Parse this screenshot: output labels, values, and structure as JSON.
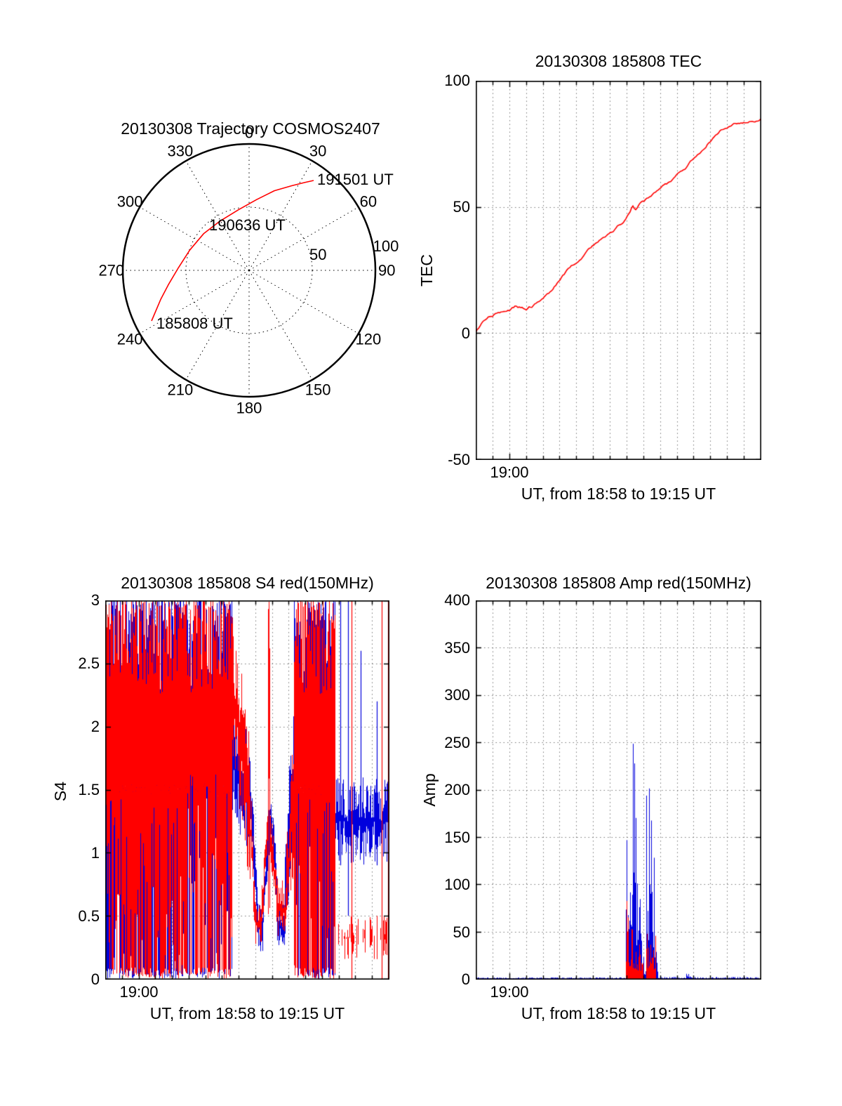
{
  "figure": {
    "background": "#ffffff",
    "axis_color": "#000000"
  },
  "colors": {
    "red": "#ff0000",
    "blue": "#0000dd",
    "grid": "#777777"
  },
  "chart_data": [
    {
      "id": "trajectory",
      "type": "polar",
      "title": "20130308 Trajectory COSMOS2407",
      "azimuth_ticks": [
        {
          "deg": 0,
          "label": "0"
        },
        {
          "deg": 30,
          "label": "30"
        },
        {
          "deg": 60,
          "label": "60"
        },
        {
          "deg": 90,
          "label": "90"
        },
        {
          "deg": 120,
          "label": "120"
        },
        {
          "deg": 150,
          "label": "150"
        },
        {
          "deg": 180,
          "label": "180"
        },
        {
          "deg": 210,
          "label": "210"
        },
        {
          "deg": 240,
          "label": "240"
        },
        {
          "deg": 270,
          "label": "270"
        },
        {
          "deg": 300,
          "label": "300"
        },
        {
          "deg": 330,
          "label": "330"
        }
      ],
      "ring_ticks": [
        {
          "r": 0.56,
          "deg": 77,
          "label": "50"
        },
        {
          "r": 1.1,
          "deg": 80,
          "label": "100"
        }
      ],
      "dotted_rings_r": [
        0.5
      ],
      "trajectory_color": "#ff0000",
      "trajectory_points_xy": [
        [
          -0.772,
          0.4
        ],
        [
          -0.7,
          0.23
        ],
        [
          -0.64,
          0.115
        ],
        [
          -0.56,
          -0.02
        ],
        [
          -0.47,
          -0.16
        ],
        [
          -0.36,
          -0.29
        ],
        [
          -0.23,
          -0.39
        ],
        [
          -0.083,
          -0.48
        ],
        [
          0.06,
          -0.56
        ],
        [
          0.2,
          -0.63
        ],
        [
          0.34,
          -0.67
        ],
        [
          0.44,
          -0.695
        ],
        [
          0.511,
          -0.711
        ]
      ],
      "time_annotations": [
        "191501 UT",
        "190636 UT",
        "185808 UT"
      ]
    },
    {
      "id": "tec",
      "type": "line",
      "title": "20130308 185808 TEC",
      "ylabel": "TEC",
      "xlabel": "UT, from 18:58 to 19:15 UT",
      "xlim_minutes": [
        0,
        17
      ],
      "x_start": "18:58",
      "x_end": "19:15",
      "ylim": [
        -50,
        100
      ],
      "yticks": [
        "100",
        "50",
        "0",
        "-50"
      ],
      "xticks": [
        {
          "minute": 2,
          "label": "19:00"
        }
      ],
      "grid": "dotted",
      "series": [
        {
          "name": "TEC",
          "color": "#ff0000",
          "points_t_v": [
            [
              0,
              0
            ],
            [
              0.2,
              2
            ],
            [
              0.4,
              4
            ],
            [
              0.6,
              5
            ],
            [
              0.9,
              6.5
            ],
            [
              1.2,
              7.5
            ],
            [
              1.5,
              8.5
            ],
            [
              1.8,
              9
            ],
            [
              2.1,
              9.5
            ],
            [
              2.4,
              10.5
            ],
            [
              2.7,
              10
            ],
            [
              3.0,
              9.5
            ],
            [
              3.3,
              10.5
            ],
            [
              3.6,
              11.5
            ],
            [
              3.9,
              13
            ],
            [
              4.2,
              15
            ],
            [
              4.5,
              17
            ],
            [
              4.8,
              19
            ],
            [
              5.1,
              21.5
            ],
            [
              5.4,
              24
            ],
            [
              5.7,
              26
            ],
            [
              6.0,
              28
            ],
            [
              6.3,
              30
            ],
            [
              6.6,
              32
            ],
            [
              6.9,
              34
            ],
            [
              7.2,
              36
            ],
            [
              7.5,
              37.5
            ],
            [
              7.8,
              38.5
            ],
            [
              8.1,
              39.5
            ],
            [
              8.4,
              41.5
            ],
            [
              8.7,
              43.5
            ],
            [
              9.0,
              45.5
            ],
            [
              9.2,
              48
            ],
            [
              9.35,
              50.5
            ],
            [
              9.5,
              48.5
            ],
            [
              9.65,
              50
            ],
            [
              9.8,
              51
            ],
            [
              10.0,
              52
            ],
            [
              10.3,
              53.5
            ],
            [
              10.6,
              55
            ],
            [
              11.0,
              57
            ],
            [
              11.4,
              59
            ],
            [
              11.8,
              61
            ],
            [
              12.2,
              63.5
            ],
            [
              12.6,
              66
            ],
            [
              13.0,
              69
            ],
            [
              13.4,
              72
            ],
            [
              13.8,
              75
            ],
            [
              14.2,
              77.5
            ],
            [
              14.6,
              80
            ],
            [
              15.0,
              81.5
            ],
            [
              15.4,
              82.5
            ],
            [
              15.8,
              83
            ],
            [
              16.2,
              83.5
            ],
            [
              16.6,
              84
            ],
            [
              17,
              85
            ]
          ]
        }
      ]
    },
    {
      "id": "s4",
      "type": "noise-band",
      "title": "20130308 185808 S4 red(150MHz)",
      "ylabel": "S4",
      "xlabel": "UT, from 18:58 to 19:15 UT",
      "xlim_minutes": [
        0,
        17
      ],
      "x_start": "18:58",
      "x_end": "19:15",
      "ylim": [
        0,
        3
      ],
      "yticks": [
        "3",
        "2.5",
        "2",
        "1.5",
        "1",
        "0.5",
        "0"
      ],
      "xticks": [
        {
          "minute": 2,
          "label": "19:00"
        }
      ],
      "grid": "dotted",
      "series": [
        {
          "name": "S4 blue",
          "color": "#0000dd",
          "style": "band",
          "segments": [
            [
              0,
              7.6,
              0,
              3,
              0,
              3
            ],
            [
              7.6,
              8.6,
              1.2,
              2.4,
              1.0,
              2.0
            ],
            [
              8.6,
              9.1,
              1.0,
              2.0,
              0.3,
              0.8
            ],
            [
              9.1,
              9.45,
              0.2,
              0.6,
              0.2,
              0.6
            ],
            [
              9.45,
              9.9,
              0.3,
              0.8,
              1.1,
              1.6
            ],
            [
              9.9,
              10.3,
              1.1,
              1.6,
              0.5,
              0.9
            ],
            [
              10.3,
              10.75,
              0.2,
              0.6,
              0.2,
              0.6
            ],
            [
              10.75,
              11.3,
              0.3,
              1.0,
              1.0,
              2.5
            ],
            [
              11.3,
              13.8,
              0,
              3,
              0,
              3
            ],
            [
              13.8,
              17,
              0.9,
              1.6,
              0.9,
              1.6
            ]
          ],
          "spikes": [
            [
              14.1,
              0.9,
              3
            ],
            [
              14.55,
              0.5,
              3
            ],
            [
              15.3,
              1.0,
              2.6
            ],
            [
              16.3,
              0.9,
              2.2
            ]
          ]
        },
        {
          "name": "S4 red (150MHz)",
          "color": "#ff0000",
          "style": "band",
          "segments": [
            [
              0,
              7.6,
              0,
              3,
              0,
              3
            ],
            [
              7.6,
              8.6,
              1.6,
              3,
              0.8,
              2.0
            ],
            [
              8.6,
              9.0,
              0.8,
              2.0,
              0.3,
              0.6
            ],
            [
              9.0,
              9.35,
              0.25,
              0.6,
              0.25,
              0.6
            ],
            [
              9.35,
              9.75,
              0.3,
              0.7,
              1.0,
              1.5
            ],
            [
              9.75,
              9.85,
              0.5,
              3,
              0.5,
              3
            ],
            [
              9.85,
              10.25,
              1.0,
              1.4,
              0.5,
              0.9
            ],
            [
              10.25,
              10.8,
              0.3,
              0.8,
              0.3,
              0.8
            ],
            [
              10.8,
              11.3,
              0.4,
              1.0,
              0.8,
              2.0
            ],
            [
              11.3,
              13.8,
              0,
              3,
              0,
              3
            ],
            [
              13.8,
              17,
              0.15,
              0.5,
              0.15,
              0.5,
              0.45
            ]
          ],
          "spikes": [
            [
              14.75,
              0,
              3
            ],
            [
              16.6,
              0,
              3
            ],
            [
              16.95,
              0,
              3
            ]
          ]
        }
      ]
    },
    {
      "id": "amp",
      "type": "noise-spike",
      "title": "20130308 185808 Amp red(150MHz)",
      "ylabel": "Amp",
      "xlabel": "UT, from 18:58 to 19:15 UT",
      "xlim_minutes": [
        0,
        17
      ],
      "x_start": "18:58",
      "x_end": "19:15",
      "ylim": [
        0,
        400
      ],
      "yticks": [
        "400",
        "350",
        "300",
        "250",
        "200",
        "150",
        "100",
        "50",
        "0"
      ],
      "xticks": [
        {
          "minute": 2,
          "label": "19:00"
        }
      ],
      "grid": "dotted",
      "series": [
        {
          "name": "Amp blue",
          "color": "#0000dd",
          "style": "spike",
          "segments": [
            [
              0,
              8.95,
              0,
              1.5,
              0,
              1.5
            ],
            [
              8.95,
              9.2,
              0,
              120,
              0,
              280
            ],
            [
              9.2,
              9.35,
              0,
              350,
              0,
              260
            ],
            [
              9.35,
              9.7,
              0,
              260,
              0,
              160
            ],
            [
              9.7,
              9.95,
              0,
              160,
              0,
              40
            ],
            [
              9.95,
              10.15,
              0,
              25,
              0,
              25
            ],
            [
              10.15,
              10.5,
              0,
              215,
              0,
              190
            ],
            [
              10.5,
              10.85,
              0,
              190,
              0,
              30
            ],
            [
              10.85,
              12.55,
              0,
              2,
              0,
              2
            ],
            [
              12.55,
              12.9,
              0,
              7,
              0,
              7
            ],
            [
              12.9,
              17,
              0,
              2,
              0,
              2
            ]
          ]
        },
        {
          "name": "Amp red (150MHz)",
          "color": "#ff0000",
          "style": "spike",
          "segments": [
            [
              8.95,
              9.55,
              0,
              85,
              0,
              55
            ],
            [
              9.55,
              10.0,
              0,
              55,
              0,
              35
            ],
            [
              10.15,
              10.75,
              0,
              55,
              0,
              45
            ]
          ]
        }
      ]
    }
  ]
}
